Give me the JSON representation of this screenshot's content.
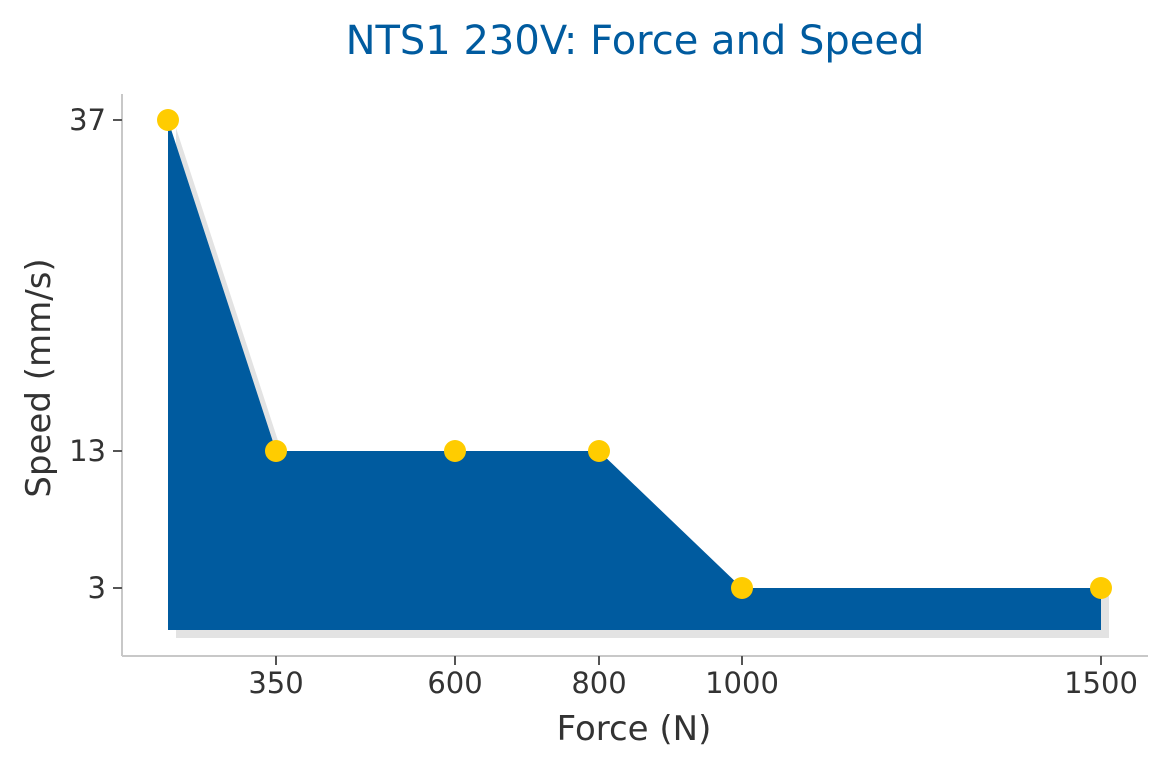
{
  "chart_data": {
    "type": "area",
    "title": "NTS1 230V: Force and Speed",
    "xlabel": "Force (N)",
    "ylabel": "Speed (mm/s)",
    "x_ticks": [
      350,
      600,
      800,
      1000,
      1500
    ],
    "y_ticks": [
      3,
      13,
      37
    ],
    "xlim": [
      200,
      1570
    ],
    "ylim": [
      0,
      39
    ],
    "series": [
      {
        "x": [
          200,
          350,
          600,
          800,
          1000,
          1500
        ],
        "y": [
          37,
          13,
          13,
          13,
          3,
          3
        ]
      }
    ],
    "grid": false,
    "legend": "none",
    "colors": {
      "fill": "#005b9f",
      "marker": "#ffcc00",
      "shadow": "#e3e3e3",
      "title": "#005b9f",
      "axis": "#c8c8c8",
      "text": "#333333"
    }
  }
}
